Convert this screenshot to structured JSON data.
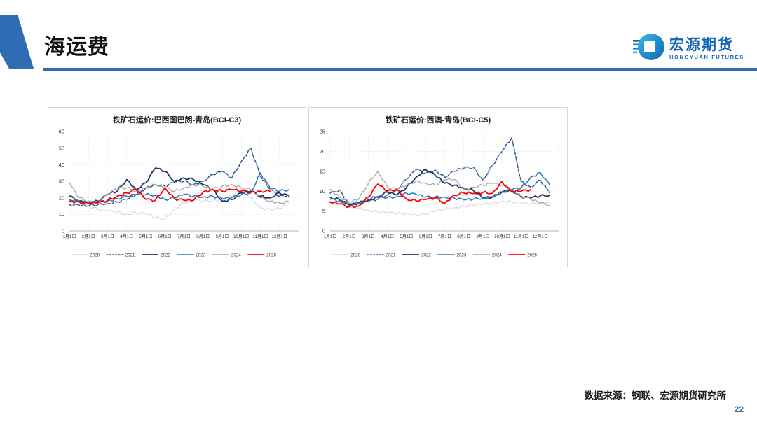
{
  "header": {
    "title": "海运费"
  },
  "logo": {
    "name_cn": "宏源期货",
    "name_en": "HONGYUAN FUTURES",
    "brand_blue": "#1565b8",
    "accent_blue": "#2e6db4"
  },
  "footer": {
    "source": "数据来源：钢联、宏源期货研究所",
    "page": "22"
  },
  "chart_data": [
    {
      "type": "line",
      "title": "铁矿石运价:巴西图巴朗-青岛(BCI-C3)",
      "ylim": [
        0,
        60
      ],
      "y_ticks": [
        0,
        10,
        20,
        30,
        40,
        50,
        60
      ],
      "x_labels": [
        "1月1日",
        "2月1日",
        "3月1日",
        "4月1日",
        "5月1日",
        "6月1日",
        "7月1日",
        "8月1日",
        "9月1日",
        "10月1日",
        "11月1日",
        "12月1日"
      ],
      "points_per_month": 2,
      "grid": true,
      "legend_position": "bottom",
      "series": [
        {
          "name": "2020",
          "color": "#d9d9d9",
          "style": "solid",
          "width": 1.2,
          "values": [
            17.5,
            16,
            15,
            13,
            12,
            11.5,
            10,
            11,
            10.5,
            8,
            7.2,
            13,
            17,
            19,
            18,
            18.5,
            19,
            21,
            25,
            20,
            14,
            13,
            13.5,
            17
          ]
        },
        {
          "name": "2021",
          "color": "#2f5597",
          "style": "dashed",
          "width": 1.5,
          "values": [
            16,
            15.5,
            15,
            16,
            16.5,
            17.5,
            19,
            22,
            26,
            28,
            27,
            29.5,
            30,
            28,
            30,
            34,
            36,
            32,
            42,
            50,
            33,
            25,
            21,
            21.5
          ]
        },
        {
          "name": "2022",
          "color": "#1f3864",
          "style": "solid",
          "width": 1.8,
          "values": [
            21,
            18,
            17,
            18,
            22,
            24,
            31,
            25,
            29,
            38,
            36,
            30,
            32,
            31,
            28,
            25,
            18,
            19,
            23,
            24,
            21,
            20,
            23,
            21
          ]
        },
        {
          "name": "2023",
          "color": "#2e75b6",
          "style": "solid",
          "width": 1.5,
          "values": [
            19,
            18,
            17,
            17.5,
            18,
            19.5,
            21,
            22,
            22,
            21.5,
            19,
            20,
            22,
            21,
            20.5,
            21,
            19.5,
            20,
            22,
            23,
            35,
            26,
            24,
            25
          ]
        },
        {
          "name": "2024",
          "color": "#a6a6a6",
          "style": "solid",
          "width": 1.3,
          "values": [
            29,
            20,
            18,
            17.5,
            22,
            26,
            26,
            24,
            26,
            28,
            26,
            24,
            26,
            28,
            27,
            25,
            27,
            28,
            26,
            25,
            20,
            18,
            17,
            17.5
          ]
        },
        {
          "name": "2025",
          "color": "#ff0000",
          "style": "solid",
          "width": 1.8,
          "values": [
            18,
            17.5,
            16.5,
            17,
            18.5,
            21,
            23,
            25,
            19,
            18.5,
            26,
            19.5,
            18.5,
            18.5,
            23.5,
            25,
            24,
            25,
            24,
            23.5,
            24,
            24
          ]
        }
      ]
    },
    {
      "type": "line",
      "title": "铁矿石运价:西澳-青岛(BCI-C5)",
      "ylim": [
        0,
        25
      ],
      "y_ticks": [
        0,
        5,
        10,
        15,
        20,
        25
      ],
      "x_labels": [
        "1月1日",
        "2月1日",
        "3月1日",
        "4月1日",
        "5月1日",
        "6月1日",
        "7月1日",
        "8月1日",
        "9月1日",
        "10月1日",
        "11月1日",
        "12月1日"
      ],
      "points_per_month": 2,
      "grid": true,
      "legend_position": "bottom",
      "series": [
        {
          "name": "2020",
          "color": "#d9d9d9",
          "style": "solid",
          "width": 1.2,
          "values": [
            7.5,
            6.8,
            6.2,
            5.8,
            5.2,
            4.8,
            4.6,
            4.4,
            4.4,
            3.9,
            4.2,
            5,
            5.5,
            5.8,
            6.3,
            6.5,
            6.8,
            7,
            7.5,
            7.3,
            7,
            6.8,
            7,
            7.2
          ]
        },
        {
          "name": "2021",
          "color": "#2f5597",
          "style": "dashed",
          "width": 1.5,
          "values": [
            9.5,
            10.3,
            6.5,
            7.2,
            7.5,
            8,
            9.2,
            10.5,
            13,
            15.5,
            14.5,
            15.3,
            13.5,
            15,
            15.8,
            16,
            12.8,
            16.5,
            20,
            23.4,
            12.5,
            11,
            12.8,
            9.5
          ]
        },
        {
          "name": "2022",
          "color": "#1f3864",
          "style": "solid",
          "width": 1.8,
          "values": [
            8.5,
            7.8,
            6.5,
            7,
            7.8,
            8.5,
            9.8,
            9,
            11,
            13.5,
            15.5,
            14,
            12,
            11.5,
            10.8,
            10.2,
            8.2,
            8.5,
            9.8,
            10.3,
            8.6,
            8.3,
            8.8,
            9
          ]
        },
        {
          "name": "2023",
          "color": "#2e75b6",
          "style": "solid",
          "width": 1.5,
          "values": [
            8,
            7.5,
            6.8,
            7,
            8,
            8.7,
            8.4,
            8.6,
            9.5,
            9.2,
            8.5,
            8.6,
            8.5,
            8.3,
            7.8,
            8,
            8.3,
            8.6,
            9.8,
            10.4,
            10.8,
            13.5,
            14.7,
            11.5
          ]
        },
        {
          "name": "2024",
          "color": "#a6a6a6",
          "style": "solid",
          "width": 1.3,
          "values": [
            10.5,
            8.5,
            7.2,
            8,
            12,
            15,
            11,
            10.5,
            11.5,
            12.5,
            12,
            11.5,
            12.8,
            13,
            10.5,
            11,
            11.5,
            12,
            11.5,
            10.5,
            8.8,
            8,
            7,
            6.5
          ]
        },
        {
          "name": "2025",
          "color": "#ff0000",
          "style": "solid",
          "width": 1.8,
          "values": [
            7.2,
            6.8,
            6.1,
            6.3,
            8.5,
            11.8,
            10,
            10.4,
            8,
            7.6,
            7.9,
            8.3,
            7,
            9,
            9.6,
            9.4,
            9.7,
            9.5,
            12.4,
            9.8,
            10,
            10.4
          ]
        }
      ]
    }
  ]
}
